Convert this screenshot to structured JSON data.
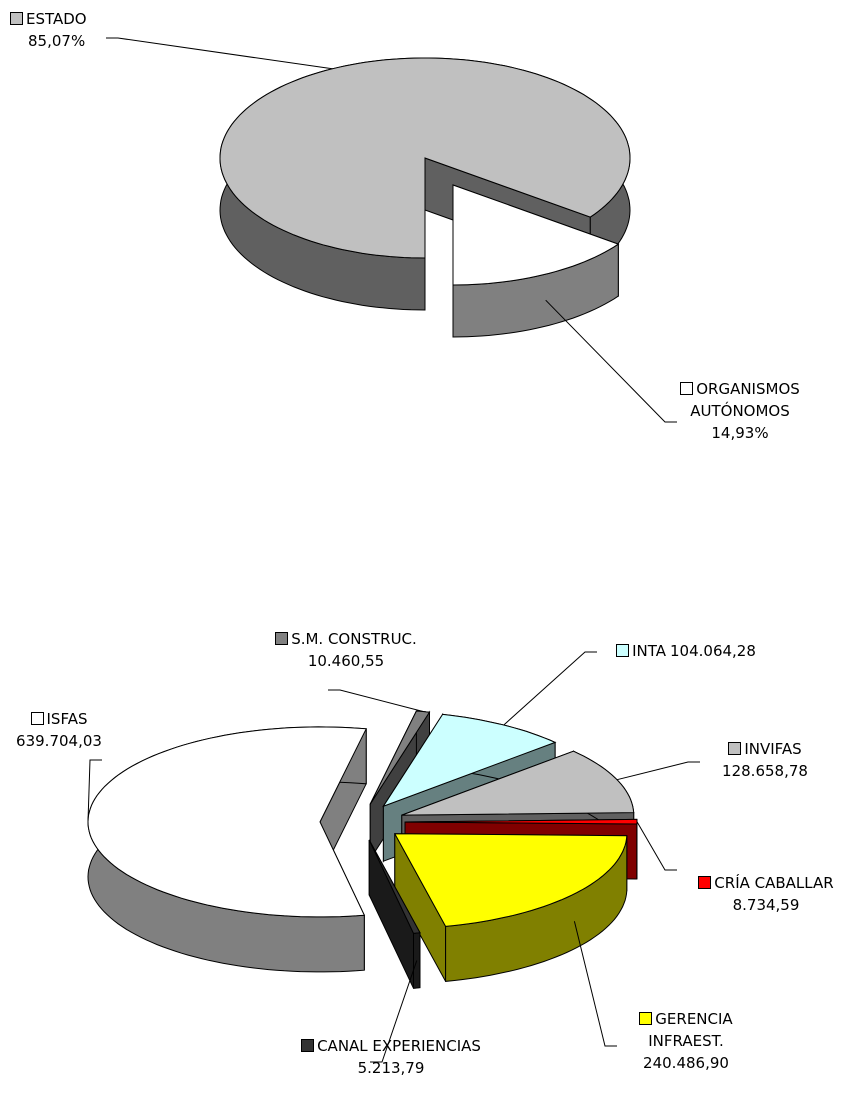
{
  "chart_data": [
    {
      "type": "pie3d",
      "categories": [
        "ESTADO",
        "ORGANISMOS AUTÓNOMOS"
      ],
      "values": [
        85.07,
        14.93
      ],
      "value_labels": [
        "85,07%",
        "14,93%"
      ],
      "colors": [
        "#c0c0c0",
        "#ffffff"
      ]
    },
    {
      "type": "pie3d",
      "categories": [
        "ISFAS",
        "S.M. CONSTRUC.",
        "INTA",
        "INVIFAS",
        "CRÍA CABALLAR",
        "GERENCIA INFRAEST.",
        "CANAL EXPERIENCIAS"
      ],
      "values": [
        639704.03,
        10460.55,
        104064.28,
        128658.78,
        8734.59,
        240486.9,
        5213.79
      ],
      "value_labels": [
        "639.704,03",
        "10.460,55",
        "104.064,28",
        "128.658,78",
        "8.734,59",
        "240.486,90",
        "5.213,79"
      ],
      "colors": [
        "#ffffff",
        "#808080",
        "#ccffff",
        "#c0c0c0",
        "#ff0000",
        "#ffff00",
        "#333333"
      ]
    }
  ]
}
